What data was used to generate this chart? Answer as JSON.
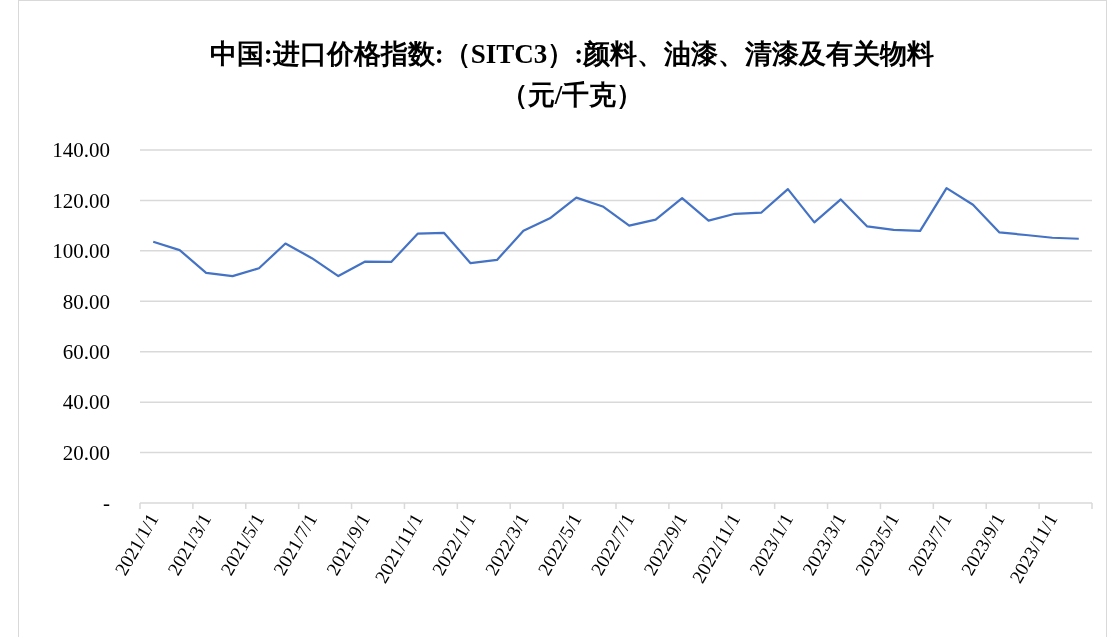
{
  "chart_data": {
    "type": "line",
    "title": "中国:进口价格指数:（SITC3）:颜料、油漆、清漆及有关物料",
    "subtitle": "（元/千克）",
    "categories": [
      "2021/1/1",
      null,
      "2021/3/1",
      null,
      "2021/5/1",
      null,
      "2021/7/1",
      null,
      "2021/9/1",
      null,
      "2021/11/1",
      null,
      "2022/1/1",
      null,
      "2022/3/1",
      null,
      "2022/5/1",
      null,
      "2022/7/1",
      null,
      "2022/9/1",
      null,
      "2022/11/1",
      null,
      "2023/1/1",
      null,
      "2023/3/1",
      null,
      "2023/5/1",
      null,
      "2023/7/1",
      null,
      "2023/9/1",
      null,
      "2023/11/1",
      null
    ],
    "series": [
      {
        "color": "#4472c4",
        "values": [
          103.6,
          100.3,
          91.3,
          90.0,
          93.1,
          102.9,
          97.1,
          90.0,
          95.7,
          95.6,
          106.8,
          107.1,
          95.1,
          96.4,
          108.0,
          112.9,
          121.1,
          117.6,
          110.0,
          112.4,
          120.9,
          112.0,
          114.7,
          115.2,
          124.5,
          111.3,
          120.4,
          109.7,
          108.3,
          107.9,
          124.9,
          118.3,
          107.3,
          106.3,
          105.2,
          104.8
        ]
      }
    ],
    "ylim": [
      0,
      140
    ],
    "yticks": [
      {
        "value": 0,
        "label": "-"
      },
      {
        "value": 20,
        "label": "20.00"
      },
      {
        "value": 40,
        "label": "40.00"
      },
      {
        "value": 60,
        "label": "60.00"
      },
      {
        "value": 80,
        "label": "80.00"
      },
      {
        "value": 100,
        "label": "100.00"
      },
      {
        "value": 120,
        "label": "120.00"
      },
      {
        "value": 140,
        "label": "140.00"
      }
    ],
    "grid": "y",
    "marker": "none",
    "line_style": "solid"
  }
}
